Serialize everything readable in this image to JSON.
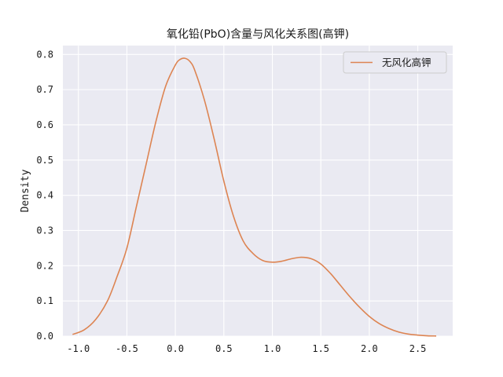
{
  "chart_data": {
    "type": "line",
    "title": "氧化铅(PbO)含量与风化关系图(高钾)",
    "xlabel": "",
    "ylabel": "Density",
    "xlim": [
      -1.16,
      2.86
    ],
    "ylim": [
      0.0,
      0.8252
    ],
    "xticks": [
      -1.0,
      -0.5,
      0.0,
      0.5,
      1.0,
      1.5,
      2.0,
      2.5
    ],
    "xtick_labels": [
      "-1.0",
      "-0.5",
      "0.0",
      "0.5",
      "1.0",
      "1.5",
      "2.0",
      "2.5"
    ],
    "yticks": [
      0.0,
      0.1,
      0.2,
      0.3,
      0.4,
      0.5,
      0.6,
      0.7,
      0.8
    ],
    "ytick_labels": [
      "0.0",
      "0.1",
      "0.2",
      "0.3",
      "0.4",
      "0.5",
      "0.6",
      "0.7",
      "0.8"
    ],
    "grid": true,
    "legend_position": "top-right",
    "background_color": "#eaeaf2",
    "grid_color": "#ffffff",
    "series": [
      {
        "name": "无风化高钾",
        "color": "#dd8452",
        "x": [
          -1.06,
          -0.94,
          -0.82,
          -0.7,
          -0.6,
          -0.5,
          -0.4,
          -0.3,
          -0.2,
          -0.1,
          0.0,
          0.05,
          0.1,
          0.15,
          0.2,
          0.3,
          0.4,
          0.5,
          0.6,
          0.7,
          0.8,
          0.9,
          1.0,
          1.1,
          1.2,
          1.3,
          1.4,
          1.5,
          1.6,
          1.7,
          1.8,
          1.9,
          2.0,
          2.1,
          2.2,
          2.3,
          2.4,
          2.5,
          2.6,
          2.69
        ],
        "y": [
          0.005,
          0.018,
          0.048,
          0.1,
          0.17,
          0.25,
          0.37,
          0.49,
          0.61,
          0.71,
          0.77,
          0.786,
          0.789,
          0.78,
          0.755,
          0.67,
          0.56,
          0.44,
          0.34,
          0.27,
          0.235,
          0.215,
          0.21,
          0.213,
          0.22,
          0.224,
          0.22,
          0.205,
          0.178,
          0.145,
          0.112,
          0.082,
          0.056,
          0.036,
          0.022,
          0.012,
          0.006,
          0.003,
          0.001,
          0.0005
        ]
      }
    ]
  }
}
